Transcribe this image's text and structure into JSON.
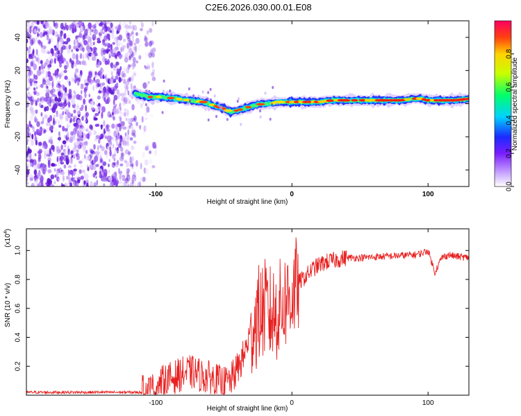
{
  "title": "C2E6.2026.030.00.01.E08",
  "top_panel": {
    "chart_data": {
      "type": "heatmap",
      "title": "C2E6.2026.030.00.01.E08",
      "xlabel": "Height of straight line (km)",
      "ylabel": "Frequency (Hz)",
      "xlim": [
        -195,
        130
      ],
      "ylim": [
        -50,
        50
      ],
      "x_ticks": [
        -100,
        0,
        100
      ],
      "x_tick_labels": [
        "-100",
        "0",
        "100"
      ],
      "y_ticks": [
        -40,
        -20,
        0,
        20,
        40
      ],
      "y_tick_labels": [
        "-40",
        "-20",
        "0",
        "20",
        "40"
      ],
      "ridge": {
        "x": [
          -115,
          -105,
          -95,
          -85,
          -75,
          -65,
          -58,
          -50,
          -45,
          -40,
          -35,
          -28,
          -20,
          -15,
          -10,
          0,
          10,
          20,
          30,
          40,
          50,
          60,
          70,
          80,
          90,
          95,
          100,
          110,
          120,
          130
        ],
        "y": [
          6,
          4,
          4,
          3,
          2,
          1,
          -1,
          -3,
          -5,
          -4,
          -3,
          -1,
          0,
          0,
          1,
          1,
          1,
          1,
          2,
          2,
          2,
          2,
          2,
          2,
          3,
          3,
          2,
          2,
          2,
          3
        ]
      },
      "noise_region_x": [
        -195,
        -100
      ]
    },
    "colorbar": {
      "label": "Normalized spectral amplitude",
      "range": [
        0.0,
        1.0
      ],
      "ticks": [
        0.0,
        0.2,
        0.4,
        0.6,
        0.8
      ],
      "tick_labels": [
        "0.0",
        "0.2",
        "0.4",
        "0.6",
        "0.8"
      ]
    }
  },
  "bottom_panel": {
    "chart_data": {
      "type": "line",
      "xlabel": "Height of straight line (km)",
      "ylabel": "SNR (10 * v/v)",
      "scale_label": "(x10",
      "scale_exp": "4",
      "xlim": [
        -195,
        130
      ],
      "ylim": [
        0,
        1.15
      ],
      "x_ticks": [
        -100,
        0,
        100
      ],
      "x_tick_labels": [
        "-100",
        "0",
        "100"
      ],
      "y_ticks": [
        0.2,
        0.4,
        0.6,
        0.8,
        1.0
      ],
      "y_tick_labels": [
        "0.2",
        "0.4",
        "0.6",
        "0.8",
        "1.0"
      ],
      "series": [
        {
          "name": "SNR",
          "color": "#e82020",
          "x": [
            -195,
            -110,
            -105,
            -100,
            -95,
            -90,
            -85,
            -80,
            -75,
            -70,
            -65,
            -60,
            -55,
            -50,
            -45,
            -40,
            -35,
            -30,
            -25,
            -20,
            -15,
            -10,
            -5,
            0,
            5,
            10,
            15,
            20,
            25,
            30,
            35,
            40,
            50,
            60,
            70,
            80,
            90,
            95,
            100,
            105,
            110,
            115,
            120,
            130
          ],
          "y": [
            0.02,
            0.02,
            0.03,
            0.05,
            0.09,
            0.11,
            0.13,
            0.15,
            0.16,
            0.15,
            0.13,
            0.12,
            0.1,
            0.08,
            0.1,
            0.18,
            0.28,
            0.45,
            0.55,
            0.6,
            0.55,
            0.58,
            0.65,
            0.7,
            0.78,
            0.82,
            0.87,
            0.9,
            0.92,
            0.93,
            0.94,
            0.95,
            0.95,
            0.955,
            0.96,
            0.965,
            0.97,
            0.98,
            1.0,
            0.85,
            0.95,
            0.97,
            0.96,
            0.95
          ]
        }
      ]
    }
  },
  "colors": {
    "line": "#e82020",
    "noise": "#6a1fe0",
    "axis": "#000000"
  }
}
